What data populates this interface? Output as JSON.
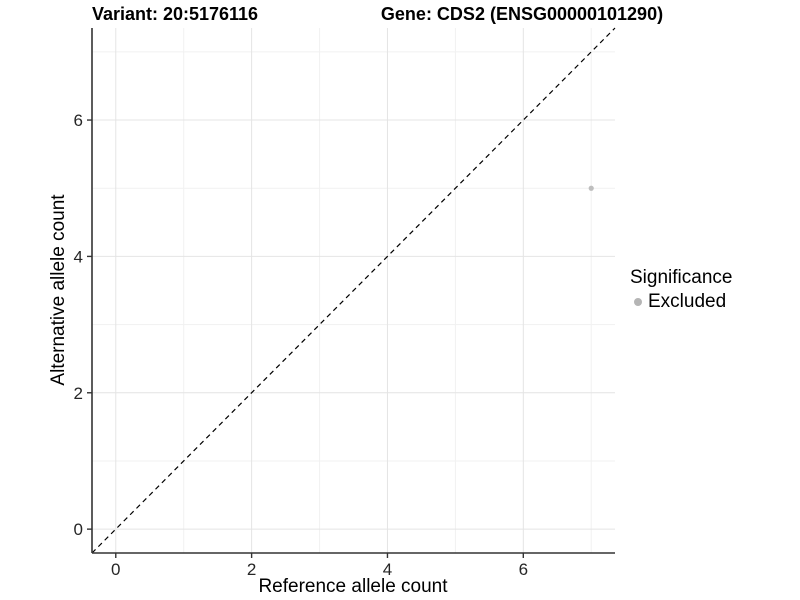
{
  "header": {
    "variant_title": "Variant: 20:5176116",
    "gene_title": "Gene: CDS2 (ENSG00000101290)"
  },
  "legend": {
    "title": "Significance",
    "entries": [
      {
        "label": "Excluded",
        "color": "#b5b5b5"
      }
    ]
  },
  "colors": {
    "point": "#bebebe",
    "grid_major": "#e4e4e4",
    "grid_minor": "#f1f1f1",
    "axis_line": "#333333",
    "tick_label": "#262626",
    "reference_line": "#000000"
  },
  "chart_data": {
    "type": "scatter",
    "title": "Variant: 20:5176116   Gene: CDS2 (ENSG00000101290)",
    "xlabel": "Reference allele count",
    "ylabel": "Alternative allele count",
    "xlim": [
      -0.35,
      7.35
    ],
    "ylim": [
      -0.35,
      7.35
    ],
    "x_ticks": [
      0,
      2,
      4,
      6
    ],
    "y_ticks": [
      0,
      2,
      4,
      6
    ],
    "x_minor_ticks": [
      1,
      3,
      5,
      7
    ],
    "y_minor_ticks": [
      1,
      3,
      5,
      7
    ],
    "grid": true,
    "legend_position": "right",
    "legend_title": "Significance",
    "series": [
      {
        "name": "Excluded",
        "color": "#bebebe",
        "points": [
          {
            "x": 7,
            "y": 5
          }
        ]
      }
    ],
    "reference_line": {
      "type": "identity",
      "style": "dashed",
      "color": "#000000"
    }
  }
}
